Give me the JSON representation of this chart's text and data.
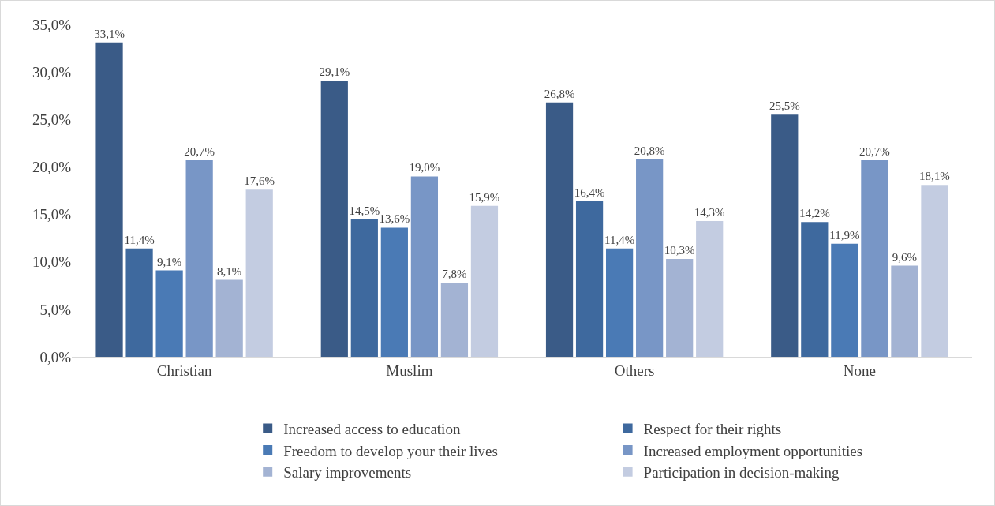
{
  "chart_data": {
    "type": "bar",
    "categories": [
      "Christian",
      "Muslim",
      "Others",
      "None"
    ],
    "series": [
      {
        "name": "Increased access to education",
        "color": "#3a5b87",
        "values": [
          33.1,
          29.1,
          26.8,
          25.5
        ],
        "value_labels": [
          "33,1%",
          "29,1%",
          "26,8%",
          "25,5%"
        ]
      },
      {
        "name": "Respect for their rights",
        "color": "#3e699e",
        "values": [
          11.4,
          14.5,
          16.4,
          14.2
        ],
        "value_labels": [
          "11,4%",
          "14,5%",
          "16,4%",
          "14,2%"
        ]
      },
      {
        "name": "Freedom to develop your their lives",
        "color": "#4a7ab5",
        "values": [
          9.1,
          13.6,
          11.4,
          11.9
        ],
        "value_labels": [
          "9,1%",
          "13,6%",
          "11,4%",
          "11,9%"
        ]
      },
      {
        "name": "Increased employment opportunities",
        "color": "#7896c6",
        "values": [
          20.7,
          19.0,
          20.8,
          20.7
        ],
        "value_labels": [
          "20,7%",
          "19,0%",
          "20,8%",
          "20,7%"
        ]
      },
      {
        "name": "Salary improvements",
        "color": "#a3b3d3",
        "values": [
          8.1,
          7.8,
          10.3,
          9.6
        ],
        "value_labels": [
          "8,1%",
          "7,8%",
          "10,3%",
          "9,6%"
        ]
      },
      {
        "name": "Participation in decision-making",
        "color": "#c3cce1",
        "values": [
          17.6,
          15.9,
          14.3,
          18.1
        ],
        "value_labels": [
          "17,6%",
          "15,9%",
          "14,3%",
          "18,1%"
        ]
      }
    ],
    "ylim": [
      0,
      35
    ],
    "yticks": [
      {
        "value": 0,
        "label": "0,0%"
      },
      {
        "value": 5,
        "label": "5,0%"
      },
      {
        "value": 10,
        "label": "10,0%"
      },
      {
        "value": 15,
        "label": "15,0%"
      },
      {
        "value": 20,
        "label": "20,0%"
      },
      {
        "value": 25,
        "label": "25,0%"
      },
      {
        "value": 30,
        "label": "30,0%"
      },
      {
        "value": 35,
        "label": "35,0%"
      }
    ],
    "grid": false,
    "legend": "bottom"
  }
}
